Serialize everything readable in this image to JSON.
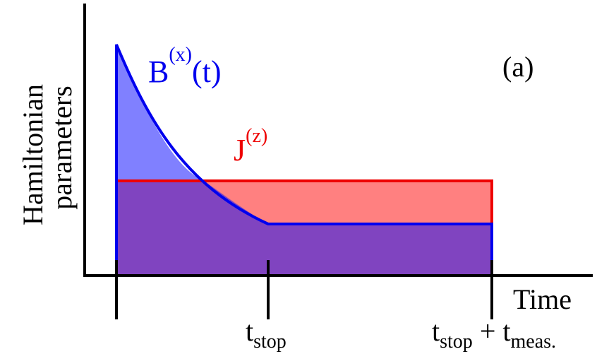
{
  "figure": {
    "panel_label": "(a)",
    "y_axis_label_line1": "Hamiltonian",
    "y_axis_label_line2": "parameters",
    "x_axis_label": "Time",
    "series": [
      {
        "name_base": "B",
        "name_superscript": "(x)",
        "name_suffix": "(t)",
        "color": "#0000ee",
        "fill": "#8080ff",
        "shape": "exponential decay then constant"
      },
      {
        "name_base": "J",
        "name_superscript": "(z)",
        "color": "#ee0000",
        "fill": "#ff8080",
        "shape": "constant"
      }
    ],
    "overlap_fill": "#8044c0",
    "ticks": [
      {
        "name": "t-start",
        "label_base": "",
        "label_sub": "",
        "label_plus": "",
        "label_base2": "",
        "label_sub2": ""
      },
      {
        "name": "t-stop",
        "label_base": "t",
        "label_sub": "stop",
        "label_plus": "",
        "label_base2": "",
        "label_sub2": ""
      },
      {
        "name": "t-stop-plus-meas",
        "label_base": "t",
        "label_sub": "stop",
        "label_plus": " + ",
        "label_base2": "t",
        "label_sub2": "meas."
      }
    ]
  }
}
